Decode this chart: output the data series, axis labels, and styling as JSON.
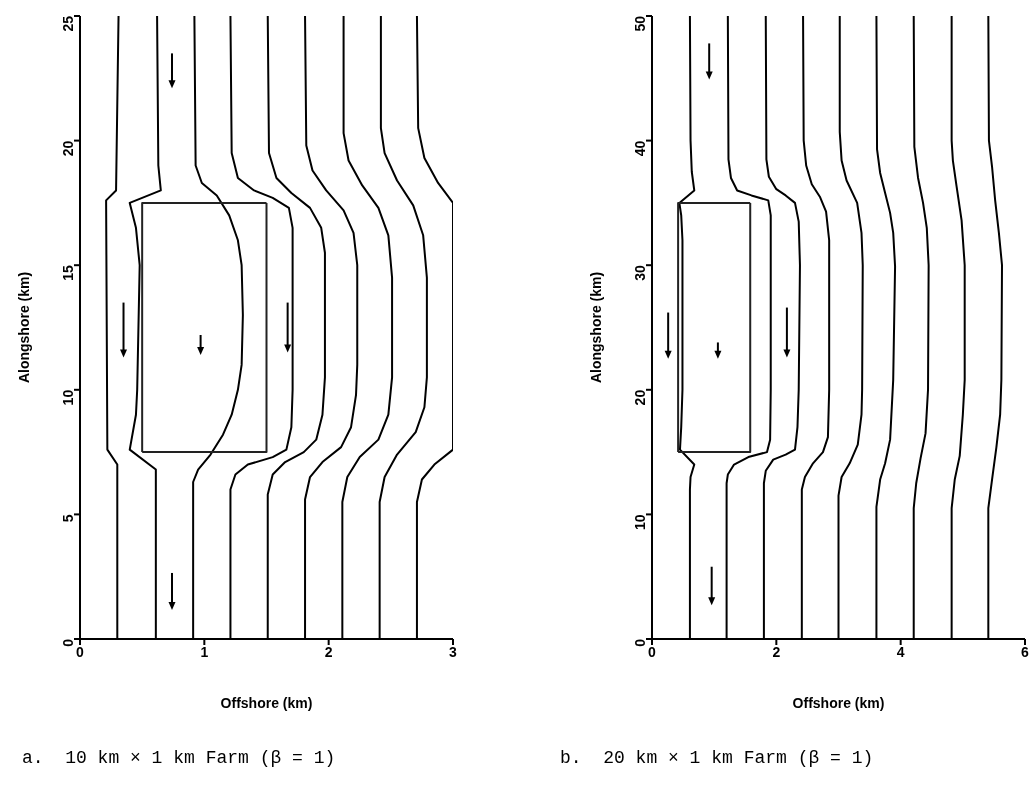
{
  "chart_data": [
    {
      "type": "line",
      "title": "a.  10 km × 1 km Farm (β = 1)",
      "xlabel": "Offshore (km)",
      "ylabel": "Alongshore (km)",
      "xlim": [
        0,
        3
      ],
      "ylim": [
        0,
        25
      ],
      "xticks": [
        0,
        1,
        2,
        3
      ],
      "yticks": [
        0,
        5,
        10,
        15,
        20,
        25
      ],
      "series": [
        {
          "color": "#000000",
          "x": [
            0.3,
            0.3,
            0.22,
            0.21,
            0.29,
            0.31
          ],
          "values": [
            0,
            7.0,
            7.6,
            17.6,
            18.0,
            25
          ]
        },
        {
          "color": "#000000",
          "x": [
            0.61,
            0.61,
            0.4,
            0.45,
            0.46,
            0.48,
            0.45,
            0.4,
            0.65,
            0.63,
            0.62
          ],
          "values": [
            0,
            6.8,
            7.6,
            9,
            10,
            15,
            16.5,
            17.5,
            18.0,
            19,
            25
          ]
        },
        {
          "color": "#000000",
          "x": [
            0.91,
            0.91,
            0.95,
            1.05,
            1.15,
            1.22,
            1.27,
            1.3,
            1.31,
            1.3,
            1.27,
            1.2,
            1.1,
            0.98,
            0.93,
            0.92
          ],
          "values": [
            0,
            6.3,
            6.8,
            7.4,
            8.2,
            9.0,
            10,
            11,
            13,
            15,
            16,
            17,
            17.8,
            18.3,
            19,
            25
          ]
        },
        {
          "color": "#000000",
          "x": [
            1.21,
            1.21,
            1.25,
            1.35,
            1.55,
            1.66,
            1.7,
            1.71,
            1.71,
            1.68,
            1.55,
            1.4,
            1.27,
            1.22,
            1.21
          ],
          "values": [
            0,
            6.0,
            6.6,
            7.0,
            7.3,
            7.6,
            8.5,
            10,
            16.5,
            17.3,
            17.7,
            18.0,
            18.5,
            19.5,
            25
          ]
        },
        {
          "color": "#000000",
          "x": [
            1.51,
            1.51,
            1.55,
            1.65,
            1.8,
            1.9,
            1.95,
            1.97,
            1.97,
            1.94,
            1.85,
            1.7,
            1.58,
            1.52,
            1.51
          ],
          "values": [
            0,
            5.8,
            6.6,
            7.1,
            7.5,
            8.0,
            9.0,
            10.5,
            15.5,
            16.5,
            17.3,
            17.9,
            18.5,
            19.5,
            25
          ]
        },
        {
          "color": "#000000",
          "x": [
            1.81,
            1.81,
            1.85,
            1.95,
            2.1,
            2.18,
            2.22,
            2.23,
            2.23,
            2.2,
            2.12,
            1.98,
            1.87,
            1.82,
            1.81
          ],
          "values": [
            0,
            5.6,
            6.5,
            7.1,
            7.7,
            8.5,
            9.8,
            11,
            15,
            16.3,
            17.2,
            18.0,
            18.8,
            19.8,
            25
          ]
        },
        {
          "color": "#000000",
          "x": [
            2.11,
            2.11,
            2.15,
            2.25,
            2.4,
            2.48,
            2.51,
            2.51,
            2.48,
            2.4,
            2.27,
            2.16,
            2.12,
            2.12
          ],
          "values": [
            0,
            5.5,
            6.5,
            7.3,
            8.0,
            9.0,
            10.5,
            14.5,
            16.2,
            17.3,
            18.2,
            19.2,
            20.3,
            25
          ]
        },
        {
          "color": "#000000",
          "x": [
            2.41,
            2.41,
            2.45,
            2.55,
            2.7,
            2.77,
            2.79,
            2.79,
            2.76,
            2.68,
            2.55,
            2.45,
            2.42,
            2.42
          ],
          "values": [
            0,
            5.5,
            6.5,
            7.4,
            8.3,
            9.3,
            10.5,
            14.5,
            16.2,
            17.4,
            18.4,
            19.5,
            20.5,
            25
          ]
        },
        {
          "color": "#000000",
          "x": [
            2.71,
            2.71,
            2.75,
            2.85,
            3.0,
            3.0,
            2.88,
            2.77,
            2.72,
            2.71
          ],
          "values": [
            0,
            5.5,
            6.4,
            7.0,
            7.6,
            17.5,
            18.3,
            19.3,
            20.5,
            25
          ]
        },
        {
          "color": "#222222",
          "x": [
            0.5,
            1.5,
            1.5
          ],
          "values": [
            7.5,
            7.5,
            17.5
          ]
        },
        {
          "color": "#222222",
          "x": [
            1.5,
            0.5,
            0.5
          ],
          "values": [
            17.5,
            17.5,
            7.5
          ]
        }
      ]
    },
    {
      "type": "line",
      "title": "b.  20 km × 1 km Farm (β = 1)",
      "xlabel": "Offshore (km)",
      "ylabel": "Alongshore (km)",
      "xlim": [
        0,
        6
      ],
      "ylim": [
        0,
        50
      ],
      "xticks": [
        0,
        2,
        4,
        6
      ],
      "yticks": [
        0,
        10,
        20,
        30,
        40,
        50
      ],
      "series": [
        {
          "color": "#000000",
          "x": [
            0.61,
            0.61,
            0.62,
            0.68,
            0.45,
            0.47,
            0.49,
            0.49,
            0.47,
            0.44,
            0.68,
            0.64,
            0.62,
            0.61
          ],
          "values": [
            0,
            12,
            13,
            14,
            15.2,
            17,
            20,
            32,
            34,
            35,
            36,
            37.5,
            40,
            50
          ]
        },
        {
          "color": "#000000",
          "x": [
            1.2,
            1.2,
            1.22,
            1.32,
            1.55,
            1.85,
            1.9,
            1.91,
            1.91,
            1.87,
            1.6,
            1.37,
            1.27,
            1.23,
            1.22
          ],
          "values": [
            0,
            12.5,
            13.2,
            14.0,
            14.6,
            15.0,
            16,
            20,
            34,
            35.2,
            35.6,
            36.0,
            37,
            38.5,
            50
          ]
        },
        {
          "color": "#000000",
          "x": [
            1.8,
            1.8,
            1.83,
            1.95,
            2.15,
            2.3,
            2.34,
            2.36,
            2.38,
            2.36,
            2.3,
            2.15,
            2.0,
            1.88,
            1.84,
            1.83
          ],
          "values": [
            0,
            12.5,
            13.5,
            14.4,
            14.8,
            15.2,
            17,
            20,
            30,
            33.5,
            35,
            35.6,
            36.1,
            37.1,
            38.5,
            50
          ]
        },
        {
          "color": "#000000",
          "x": [
            2.41,
            2.41,
            2.46,
            2.59,
            2.75,
            2.83,
            2.85,
            2.85,
            2.8,
            2.7,
            2.57,
            2.48,
            2.44,
            2.43
          ],
          "values": [
            0,
            12.0,
            13.0,
            14.1,
            15.0,
            16.2,
            20,
            32,
            34.3,
            35.5,
            36.5,
            38.0,
            40,
            50
          ]
        },
        {
          "color": "#000000",
          "x": [
            3.0,
            3.0,
            3.05,
            3.18,
            3.31,
            3.37,
            3.38,
            3.39,
            3.37,
            3.3,
            3.13,
            3.05,
            3.02,
            3.02
          ],
          "values": [
            0,
            11.5,
            13.0,
            14.1,
            15.6,
            18,
            20,
            30,
            32.6,
            35,
            36.8,
            38.4,
            40.7,
            50
          ]
        },
        {
          "color": "#000000",
          "x": [
            3.61,
            3.61,
            3.67,
            3.75,
            3.83,
            3.88,
            3.91,
            3.88,
            3.83,
            3.75,
            3.67,
            3.62,
            3.61
          ],
          "values": [
            0,
            10.6,
            12.8,
            14.1,
            16,
            20.8,
            29.9,
            32.6,
            34.2,
            35.8,
            37.4,
            39.3,
            50
          ]
        },
        {
          "color": "#000000",
          "x": [
            4.21,
            4.21,
            4.25,
            4.32,
            4.4,
            4.44,
            4.45,
            4.42,
            4.36,
            4.28,
            4.22,
            4.21
          ],
          "values": [
            0,
            10.5,
            12.5,
            14.5,
            16.5,
            20,
            30,
            33,
            35,
            37,
            39.5,
            50
          ]
        },
        {
          "color": "#000000",
          "x": [
            4.82,
            4.82,
            4.87,
            4.95,
            5.0,
            5.03,
            5.03,
            4.98,
            4.9,
            4.84,
            4.82,
            4.82
          ],
          "values": [
            0,
            10.5,
            12.8,
            14.7,
            18,
            20.8,
            30,
            33.6,
            36.3,
            38.4,
            40,
            50
          ]
        },
        {
          "color": "#000000",
          "x": [
            5.41,
            5.41,
            5.47,
            5.54,
            5.6,
            5.62,
            5.63,
            5.58,
            5.52,
            5.47,
            5.42,
            5.41
          ],
          "values": [
            0,
            10.5,
            12.8,
            15.4,
            18,
            20.8,
            30,
            32.6,
            35.2,
            37.9,
            40,
            50
          ]
        },
        {
          "color": "#222222",
          "x": [
            0.42,
            1.58,
            1.58
          ],
          "values": [
            15,
            15,
            35
          ]
        },
        {
          "color": "#222222",
          "x": [
            1.58,
            0.42,
            0.42
          ],
          "values": [
            35,
            35,
            15
          ]
        }
      ]
    }
  ]
}
